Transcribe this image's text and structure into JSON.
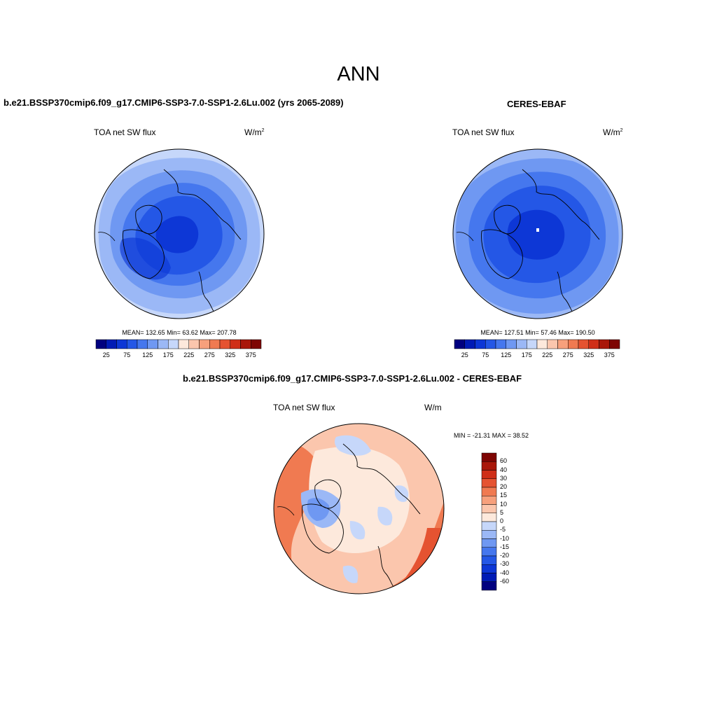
{
  "title": "ANN",
  "panel1": {
    "case_title": "b.e21.BSSP370cmip6.f09_g17.CMIP6-SSP3-7.0-SSP1-2.6Lu.002 (yrs 2065-2089)",
    "var_label": "TOA net SW flux",
    "units_base": "W/m",
    "units_exp": "2",
    "stats": "MEAN= 132.65  Min=  63.62  Max= 207.78"
  },
  "panel2": {
    "case_title": "CERES-EBAF",
    "var_label": "TOA net SW flux",
    "units_base": "W/m",
    "units_exp": "2",
    "stats": "MEAN= 127.51  Min=  57.46  Max= 190.50"
  },
  "panel3": {
    "case_title": "b.e21.BSSP370cmip6.f09_g17.CMIP6-SSP3-7.0-SSP1-2.6Lu.002 - CERES-EBAF",
    "var_label": "TOA net SW flux",
    "units": "W/m",
    "stats": "MIN = -21.31 MAX =  38.52"
  },
  "colorbar_abs": {
    "colors": [
      "#00007f",
      "#001bb5",
      "#0d37d6",
      "#2457e6",
      "#4577ee",
      "#6f98f2",
      "#9bb8f6",
      "#c6d7fa",
      "#fde9dc",
      "#fbc6ad",
      "#f7a07c",
      "#f07a51",
      "#e55331",
      "#cf2f18",
      "#a9170a",
      "#7e0503"
    ],
    "tick_labels": [
      "25",
      "75",
      "125",
      "175",
      "225",
      "275",
      "325",
      "375"
    ]
  },
  "colorbar_diff": {
    "colors": [
      "#7e0503",
      "#a9170a",
      "#cf2f18",
      "#e55331",
      "#f07a51",
      "#f7a07c",
      "#fbc6ad",
      "#fde9dc",
      "#c6d7fa",
      "#9bb8f6",
      "#6f98f2",
      "#4577ee",
      "#2457e6",
      "#0d37d6",
      "#001bb5",
      "#00007f"
    ],
    "tick_labels": [
      "60",
      "40",
      "30",
      "20",
      "15",
      "10",
      "5",
      "0",
      "-5",
      "-10",
      "-15",
      "-20",
      "-30",
      "-40",
      "-60"
    ]
  }
}
